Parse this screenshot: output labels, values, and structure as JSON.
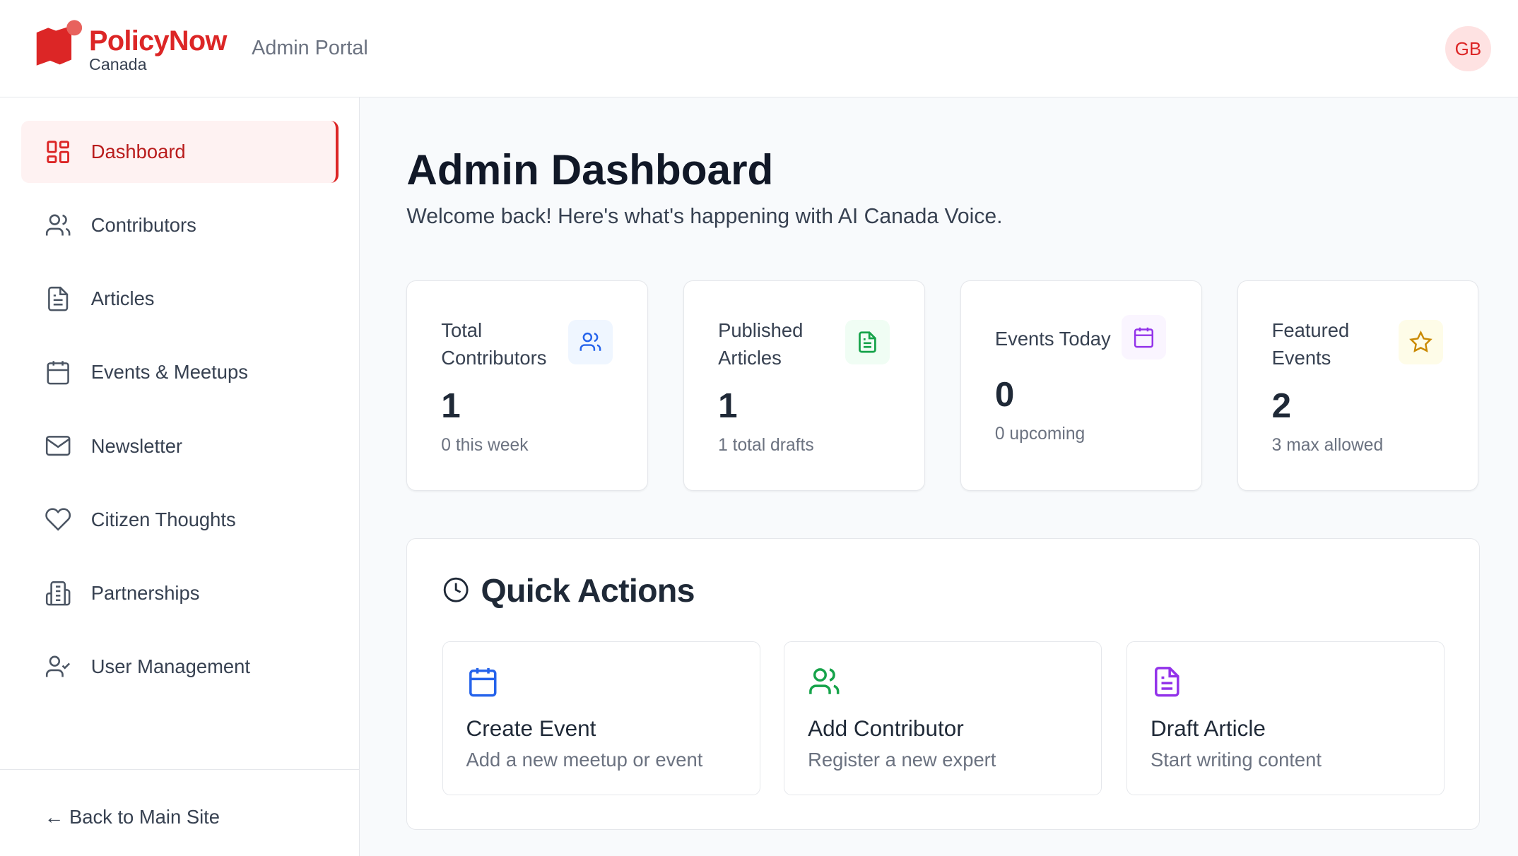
{
  "header": {
    "brand": "PolicyNow",
    "brand_sub": "Canada",
    "portal": "Admin Portal",
    "avatar": "GB"
  },
  "sidebar": {
    "items": [
      {
        "label": "Dashboard",
        "icon": "dashboard-icon",
        "active": true
      },
      {
        "label": "Contributors",
        "icon": "users-icon"
      },
      {
        "label": "Articles",
        "icon": "document-icon"
      },
      {
        "label": "Events & Meetups",
        "icon": "calendar-icon"
      },
      {
        "label": "Newsletter",
        "icon": "mail-icon"
      },
      {
        "label": "Citizen Thoughts",
        "icon": "heart-icon"
      },
      {
        "label": "Partnerships",
        "icon": "building-icon"
      },
      {
        "label": "User Management",
        "icon": "user-check-icon"
      }
    ],
    "back": "← Back to Main Site"
  },
  "main": {
    "title": "Admin Dashboard",
    "subtitle": "Welcome back! Here's what's happening with AI Canada Voice.",
    "stats": [
      {
        "label": "Total Contributors",
        "value": "1",
        "note": "0 this week",
        "color": "#2563eb"
      },
      {
        "label": "Published Articles",
        "value": "1",
        "note": "1 total drafts",
        "color": "#16a34a"
      },
      {
        "label": "Events Today",
        "value": "0",
        "note": "0 upcoming",
        "color": "#9333ea"
      },
      {
        "label": "Featured Events",
        "value": "2",
        "note": "3 max allowed",
        "color": "#ca8a04"
      }
    ],
    "quick_actions": {
      "title": "Quick Actions",
      "items": [
        {
          "title": "Create Event",
          "desc": "Add a new meetup or event",
          "color": "#2563eb"
        },
        {
          "title": "Add Contributor",
          "desc": "Register a new expert",
          "color": "#16a34a"
        },
        {
          "title": "Draft Article",
          "desc": "Start writing content",
          "color": "#9333ea"
        }
      ]
    }
  },
  "colors": {
    "accent": "#dc2626"
  }
}
